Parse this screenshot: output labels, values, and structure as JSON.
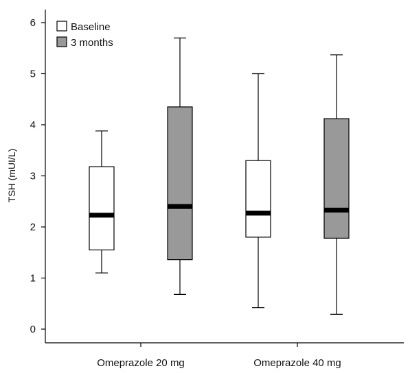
{
  "chart_data": {
    "type": "boxplot",
    "categories": [
      "Omeprazole 20 mg",
      "Omeprazole 40 mg"
    ],
    "ylabel": "TSH (mUI/L)",
    "xlabel": "",
    "ylim": [
      0,
      6
    ],
    "yticks": [
      0,
      1,
      2,
      3,
      4,
      5,
      6
    ],
    "grid": false,
    "legend_position": "top-left",
    "series": [
      {
        "name": "Baseline",
        "color": "#ffffff",
        "boxes": [
          {
            "min": 1.1,
            "q1": 1.55,
            "median": 2.23,
            "q3": 3.18,
            "max": 3.88
          },
          {
            "min": 0.42,
            "q1": 1.8,
            "median": 2.27,
            "q3": 3.3,
            "max": 5.0
          }
        ]
      },
      {
        "name": "3 months",
        "color": "#999999",
        "boxes": [
          {
            "min": 0.68,
            "q1": 1.36,
            "median": 2.4,
            "q3": 4.35,
            "max": 5.7
          },
          {
            "min": 0.29,
            "q1": 1.78,
            "median": 2.33,
            "q3": 4.12,
            "max": 5.37
          }
        ]
      }
    ]
  }
}
